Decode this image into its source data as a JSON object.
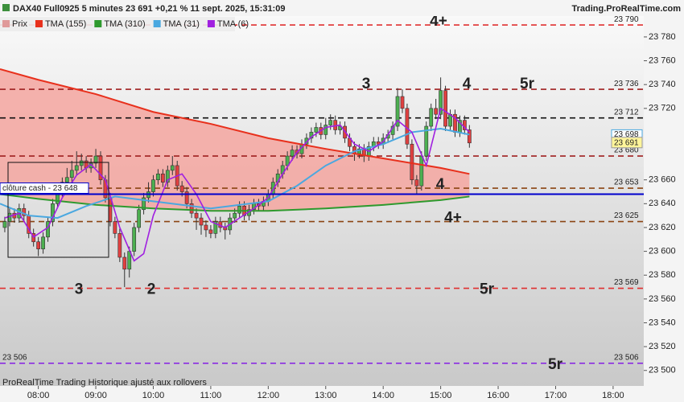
{
  "header": {
    "title": "DAX40 Full0925 5 minutes 23 691 +0,21 % 11 sept. 2025, 15:31:09",
    "brand": "Trading.ProRealTime.com"
  },
  "footer": "ProRealTime Trading  Historique ajusté aux rollovers",
  "chart_data": {
    "type": "candlestick",
    "price_name": "Prix",
    "price_color": "#e09a9a",
    "up_color": "#4caf50",
    "down_color": "#e04040",
    "x": [
      445,
      450,
      455,
      460,
      465,
      470,
      475,
      480,
      485,
      490,
      495,
      500,
      505,
      510,
      515,
      520,
      525,
      530,
      535,
      540,
      545,
      550,
      555,
      560,
      565,
      570,
      575,
      580,
      585,
      590,
      595,
      600,
      605,
      610,
      615,
      620,
      625,
      630,
      635,
      640,
      645,
      650,
      655,
      660,
      665,
      670,
      675,
      680,
      685,
      690,
      695,
      700,
      705,
      710,
      715,
      720,
      725,
      730,
      735,
      740,
      745,
      750,
      755,
      760,
      765,
      770,
      775,
      780,
      785,
      790,
      795,
      800,
      805,
      810,
      815,
      820,
      825,
      830,
      835,
      840,
      845,
      850,
      855,
      860,
      865,
      870,
      875,
      880,
      885,
      890,
      895,
      900,
      905,
      910,
      915,
      920,
      925,
      930
    ],
    "open": [
      23620,
      23625,
      23632,
      23628,
      23636,
      23630,
      23615,
      23608,
      23602,
      23612,
      23625,
      23640,
      23650,
      23658,
      23662,
      23668,
      23672,
      23676,
      23670,
      23674,
      23680,
      23660,
      23645,
      23625,
      23615,
      23595,
      23585,
      23600,
      23620,
      23635,
      23645,
      23650,
      23660,
      23665,
      23658,
      23668,
      23672,
      23655,
      23650,
      23640,
      23632,
      23628,
      23622,
      23618,
      23615,
      23625,
      23620,
      23618,
      23628,
      23632,
      23638,
      23630,
      23635,
      23640,
      23638,
      23642,
      23648,
      23658,
      23665,
      23672,
      23680,
      23685,
      23682,
      23690,
      23695,
      23700,
      23704,
      23698,
      23706,
      23710,
      23702,
      23705,
      23695,
      23688,
      23682,
      23686,
      23680,
      23688,
      23692,
      23690,
      23695,
      23698,
      23705,
      23730,
      23720,
      23690,
      23660,
      23655,
      23680,
      23705,
      23720,
      23715,
      23735,
      23705,
      23715,
      23700,
      23710,
      23702
    ],
    "high": [
      23629,
      23636,
      23636,
      23640,
      23640,
      23634,
      23619,
      23612,
      23616,
      23629,
      23644,
      23654,
      23662,
      23670,
      23676,
      23684,
      23682,
      23680,
      23678,
      23686,
      23684,
      23664,
      23649,
      23629,
      23619,
      23599,
      23604,
      23624,
      23639,
      23649,
      23658,
      23664,
      23669,
      23669,
      23672,
      23680,
      23676,
      23659,
      23654,
      23644,
      23636,
      23632,
      23626,
      23622,
      23629,
      23629,
      23624,
      23632,
      23636,
      23642,
      23642,
      23639,
      23644,
      23644,
      23646,
      23652,
      23662,
      23669,
      23676,
      23684,
      23689,
      23689,
      23694,
      23699,
      23704,
      23708,
      23708,
      23712,
      23715,
      23714,
      23709,
      23709,
      23699,
      23692,
      23690,
      23690,
      23692,
      23696,
      23696,
      23699,
      23702,
      23709,
      23737,
      23736,
      23724,
      23694,
      23664,
      23684,
      23709,
      23724,
      23728,
      23746,
      23739,
      23719,
      23719,
      23714,
      23714,
      23706
    ],
    "low": [
      23616,
      23621,
      23624,
      23624,
      23626,
      23611,
      23604,
      23596,
      23598,
      23608,
      23621,
      23636,
      23646,
      23654,
      23658,
      23664,
      23668,
      23666,
      23666,
      23670,
      23656,
      23641,
      23621,
      23611,
      23591,
      23570,
      23578,
      23596,
      23616,
      23631,
      23641,
      23646,
      23656,
      23654,
      23654,
      23664,
      23651,
      23646,
      23636,
      23628,
      23618,
      23614,
      23612,
      23611,
      23611,
      23616,
      23610,
      23614,
      23624,
      23628,
      23626,
      23626,
      23631,
      23634,
      23634,
      23638,
      23644,
      23654,
      23661,
      23668,
      23676,
      23678,
      23678,
      23686,
      23691,
      23696,
      23694,
      23694,
      23702,
      23698,
      23698,
      23691,
      23684,
      23676,
      23678,
      23675,
      23676,
      23684,
      23686,
      23686,
      23691,
      23694,
      23701,
      23716,
      23686,
      23656,
      23648,
      23651,
      23676,
      23701,
      23711,
      23711,
      23701,
      23701,
      23696,
      23696,
      23698,
      23687
    ],
    "close": [
      23625,
      23632,
      23628,
      23636,
      23630,
      23615,
      23608,
      23602,
      23612,
      23625,
      23640,
      23650,
      23658,
      23662,
      23668,
      23672,
      23676,
      23670,
      23674,
      23680,
      23660,
      23645,
      23625,
      23615,
      23595,
      23585,
      23600,
      23620,
      23635,
      23645,
      23650,
      23660,
      23665,
      23658,
      23668,
      23672,
      23655,
      23650,
      23640,
      23632,
      23628,
      23622,
      23618,
      23615,
      23625,
      23620,
      23618,
      23628,
      23632,
      23638,
      23630,
      23635,
      23640,
      23638,
      23642,
      23648,
      23658,
      23665,
      23672,
      23680,
      23685,
      23682,
      23690,
      23695,
      23700,
      23704,
      23698,
      23706,
      23710,
      23702,
      23705,
      23695,
      23688,
      23682,
      23686,
      23680,
      23688,
      23692,
      23690,
      23695,
      23698,
      23705,
      23730,
      23720,
      23690,
      23660,
      23655,
      23680,
      23705,
      23720,
      23715,
      23735,
      23705,
      23715,
      23700,
      23710,
      23702,
      23691
    ],
    "lines": [
      {
        "name": "TMA (155)",
        "color": "#e8301c",
        "x": [
          440,
          480,
          540,
          600,
          660,
          720,
          780,
          840,
          900,
          930
        ],
        "values": [
          23753,
          23744,
          23732,
          23717,
          23707,
          23695,
          23686,
          23678,
          23670,
          23665
        ]
      },
      {
        "name": "TMA (310)",
        "color": "#2e9a2e",
        "x": [
          440,
          480,
          540,
          600,
          660,
          720,
          780,
          840,
          900,
          930
        ],
        "values": [
          23648,
          23644,
          23639,
          23636,
          23634,
          23634,
          23636,
          23639,
          23643,
          23646
        ]
      },
      {
        "name": "TMA (31)",
        "color": "#4aa8e0",
        "x": [
          440,
          470,
          500,
          530,
          560,
          600,
          660,
          720,
          750,
          780,
          810,
          840,
          870,
          900,
          930
        ],
        "values": [
          23640,
          23630,
          23628,
          23638,
          23646,
          23642,
          23636,
          23642,
          23655,
          23672,
          23684,
          23690,
          23700,
          23703,
          23698
        ]
      },
      {
        "name": "TMA (6)",
        "color": "#a020e0",
        "x": [
          445,
          460,
          475,
          490,
          505,
          520,
          535,
          550,
          565,
          580,
          590,
          600,
          615,
          630,
          645,
          660,
          675,
          690,
          705,
          720,
          735,
          750,
          765,
          780,
          795,
          810,
          825,
          840,
          855,
          870,
          885,
          900,
          915,
          930
        ],
        "values": [
          23628,
          23632,
          23612,
          23620,
          23645,
          23664,
          23673,
          23660,
          23620,
          23592,
          23598,
          23630,
          23660,
          23665,
          23648,
          23625,
          23620,
          23628,
          23636,
          23645,
          23665,
          23683,
          23696,
          23704,
          23706,
          23690,
          23684,
          23692,
          23710,
          23700,
          23672,
          23720,
          23712,
          23700
        ]
      }
    ],
    "fill_color": "#f4a6a0",
    "levels": [
      {
        "value": 23790,
        "label": "23 790",
        "color": "#e03030",
        "notes": [
          {
            "text": "4+",
            "color": "#e03030"
          }
        ]
      },
      {
        "value": 23736,
        "label": "23 736",
        "color": "#a02020",
        "notes": [
          {
            "text": "3",
            "color": "#8b4513"
          },
          {
            "text": "4",
            "color": "#e03030"
          },
          {
            "text": "5r",
            "color": "#8b4513"
          }
        ]
      },
      {
        "value": 23712,
        "label": "23 712",
        "color": "#111111",
        "notes": []
      },
      {
        "value": 23680,
        "label": "23 680",
        "color": "#a02020",
        "notes": []
      },
      {
        "value": 23653,
        "label": "23 653",
        "color": "#8b4513",
        "notes": [
          {
            "text": "4",
            "color": "#8b4513"
          }
        ]
      },
      {
        "value": 23625,
        "label": "23 625",
        "color": "#8b4513",
        "notes": [
          {
            "text": "4+",
            "color": "#8b4513"
          }
        ]
      },
      {
        "value": 23569,
        "label": "23 569",
        "color": "#e03030",
        "notes": [
          {
            "text": "3",
            "color": "#e03030"
          },
          {
            "text": "2",
            "color": "#8b4513"
          },
          {
            "text": "5r",
            "color": "#e03030"
          }
        ]
      },
      {
        "value": 23506,
        "label": "23 506",
        "left_label": "23 506",
        "color": "#8a2be2",
        "notes": [
          {
            "text": "5r",
            "color": "#111111"
          }
        ]
      }
    ],
    "cash_level": {
      "value": 23648,
      "label": "clôture cash -  23 648",
      "color": "#0000cc"
    },
    "last_price": {
      "value": 23691,
      "label": "23 691"
    },
    "tma31_last": {
      "value": 23698,
      "label": "23 698"
    },
    "xlim": [
      440,
      1112
    ],
    "xticks": [
      {
        "value": 480,
        "label": "08:00"
      },
      {
        "value": 540,
        "label": "09:00"
      },
      {
        "value": 600,
        "label": "10:00"
      },
      {
        "value": 660,
        "label": "11:00"
      },
      {
        "value": 720,
        "label": "12:00"
      },
      {
        "value": 780,
        "label": "13:00"
      },
      {
        "value": 840,
        "label": "14:00"
      },
      {
        "value": 900,
        "label": "15:00"
      },
      {
        "value": 960,
        "label": "16:00"
      },
      {
        "value": 1020,
        "label": "17:00"
      },
      {
        "value": 1080,
        "label": "18:00"
      }
    ],
    "ylim": [
      23487,
      23811
    ],
    "yticks": [
      {
        "value": 23500,
        "label": "23 500"
      },
      {
        "value": 23520,
        "label": "23 520"
      },
      {
        "value": 23540,
        "label": "23 540"
      },
      {
        "value": 23560,
        "label": "23 560"
      },
      {
        "value": 23580,
        "label": "23 580"
      },
      {
        "value": 23600,
        "label": "23 600"
      },
      {
        "value": 23620,
        "label": "23 620"
      },
      {
        "value": 23640,
        "label": "23 640"
      },
      {
        "value": 23660,
        "label": "23 660"
      },
      {
        "value": 23720,
        "label": "23 720"
      },
      {
        "value": 23740,
        "label": "23 740"
      },
      {
        "value": 23760,
        "label": "23 760"
      },
      {
        "value": 23780,
        "label": "23 780"
      }
    ]
  }
}
